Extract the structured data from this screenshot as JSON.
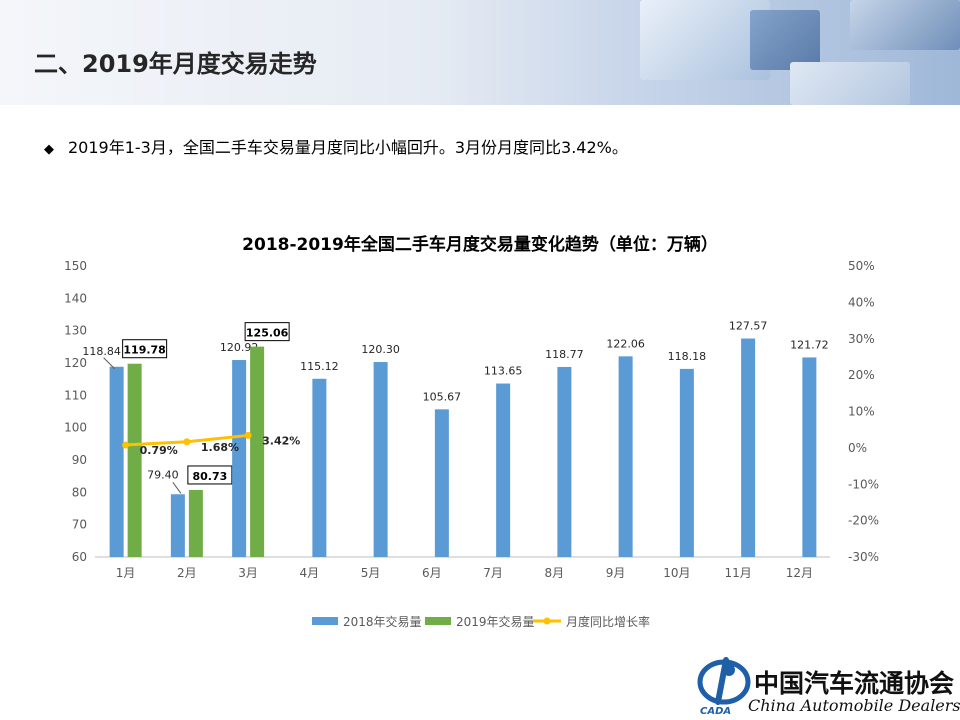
{
  "slide": {
    "title": "二、2019年月度交易走势",
    "bullet": "2019年1-3月，全国二手车交易量月度同比小幅回升。3月份月度同比3.42%。",
    "bullet_icon": "diamond-bullet-icon"
  },
  "logo": {
    "name_cn": "中国汽车流通协会",
    "name_en": "China Automobile Dealers",
    "emblem_text": "CADA"
  },
  "colors": {
    "series_2018": "#5b9bd5",
    "series_2019": "#70ad47",
    "yoy_line": "#ffc000"
  },
  "chart_data": {
    "type": "bar",
    "title": "2018-2019年全国二手车月度交易量变化趋势（单位：万辆）",
    "categories": [
      "1月",
      "2月",
      "3月",
      "4月",
      "5月",
      "6月",
      "7月",
      "8月",
      "9月",
      "10月",
      "11月",
      "12月"
    ],
    "series": [
      {
        "name": "2018年交易量",
        "type": "bar",
        "axis": "left",
        "values": [
          118.84,
          79.4,
          120.92,
          115.12,
          120.3,
          105.67,
          113.65,
          118.77,
          122.06,
          118.18,
          127.57,
          121.72
        ],
        "labels": [
          "118.84",
          "79.40",
          "120.92",
          "115.12",
          "120.30",
          "105.67",
          "113.65",
          "118.77",
          "122.06",
          "118.18",
          "127.57",
          "121.72"
        ]
      },
      {
        "name": "2019年交易量",
        "type": "bar",
        "axis": "left",
        "values": [
          119.78,
          80.73,
          125.06,
          null,
          null,
          null,
          null,
          null,
          null,
          null,
          null,
          null
        ],
        "labels": [
          "119.78",
          "80.73",
          "125.06"
        ]
      },
      {
        "name": "月度同比增长率",
        "type": "line",
        "axis": "right",
        "values": [
          0.79,
          1.68,
          3.42,
          null,
          null,
          null,
          null,
          null,
          null,
          null,
          null,
          null
        ],
        "labels": [
          "0.79%",
          "1.68%",
          "3.42%"
        ]
      }
    ],
    "y_left": {
      "min": 60,
      "max": 150,
      "ticks": [
        "60",
        "70",
        "80",
        "90",
        "100",
        "110",
        "120",
        "130",
        "140",
        "150"
      ]
    },
    "y_right": {
      "min": -30,
      "max": 50,
      "ticks": [
        "-30%",
        "-20%",
        "-10%",
        "0%",
        "10%",
        "20%",
        "30%",
        "40%",
        "50%"
      ]
    },
    "legend_position": "bottom",
    "grid": false
  }
}
